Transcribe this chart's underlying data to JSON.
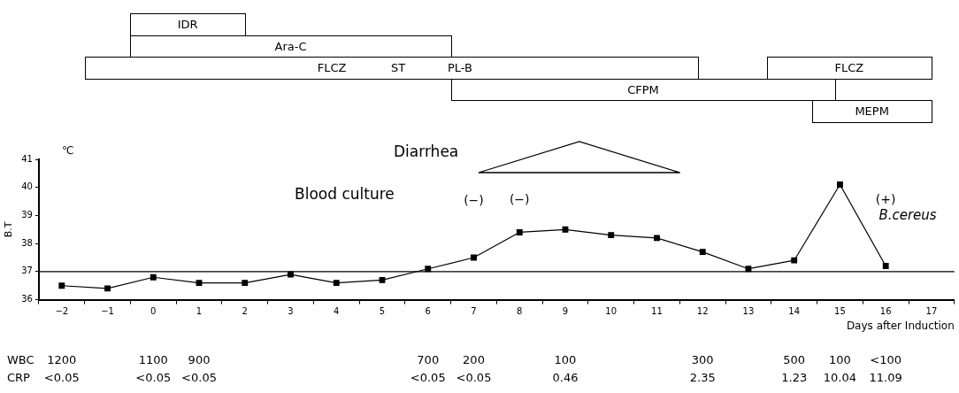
{
  "chart_data": [
    {
      "type": "other",
      "annotations": [
        "IDR",
        "Ara-C",
        "FLCZ",
        "ST",
        "PL-B",
        "FLCZ",
        "CFPM",
        "MEPM"
      ]
    },
    {
      "type": "line",
      "ylabel": "B.T",
      "xlabel": "Days after Induction",
      "x": [
        -2,
        -1,
        0,
        1,
        2,
        3,
        4,
        5,
        6,
        7,
        8,
        9,
        10,
        11,
        12,
        13,
        14,
        15,
        16
      ],
      "values": [
        36.5,
        36.4,
        36.8,
        36.6,
        36.6,
        36.9,
        36.6,
        36.7,
        37.1,
        37.5,
        38.4,
        38.5,
        38.3,
        38.2,
        37.7,
        37.1,
        37.4,
        40.1,
        37.2
      ],
      "color": "#000000",
      "marker": "square",
      "line_style": "solid",
      "grid": false,
      "legend": false,
      "xlim": [
        -2.5,
        17.5
      ],
      "xticks": [
        {
          "value": -2.5,
          "label": null
        },
        {
          "value": -2,
          "label": "−2"
        },
        {
          "value": -1.5,
          "label": null
        },
        {
          "value": -1,
          "label": "−1"
        },
        {
          "value": -0.5,
          "label": null
        },
        0,
        {
          "value": 0.5,
          "label": null
        },
        1,
        {
          "value": 1.5,
          "label": null
        },
        2,
        {
          "value": 2.5,
          "label": null
        },
        3,
        {
          "value": 3.5,
          "label": null
        },
        4,
        {
          "value": 4.5,
          "label": null
        },
        5,
        {
          "value": 5.5,
          "label": null
        },
        6,
        {
          "value": 6.5,
          "label": null
        },
        7,
        {
          "value": 7.5,
          "label": null
        },
        8,
        {
          "value": 8.5,
          "label": null
        },
        9,
        {
          "value": 9.5,
          "label": null
        },
        10,
        {
          "value": 10.5,
          "label": null
        },
        11,
        {
          "value": 11.5,
          "label": null
        },
        12,
        {
          "value": 12.5,
          "label": null
        },
        13,
        {
          "value": 13.5,
          "label": null
        },
        14,
        {
          "value": 14.5,
          "label": null
        },
        15,
        {
          "value": 15.5,
          "label": null
        },
        16,
        {
          "value": 16.5,
          "label": null
        },
        17,
        {
          "value": 17.5,
          "label": null
        }
      ],
      "ylim": [
        36,
        41
      ],
      "yticks": [
        36,
        37,
        38,
        39,
        40,
        41
      ],
      "ref_lines": [
        {
          "axis": "y",
          "value": 37,
          "color": "#000000"
        }
      ],
      "annotations": [
        "℃",
        "Diarrhea",
        "Blood culture",
        "(−)",
        "(−)",
        "(+)",
        "B.cereus",
        "WBC",
        "CRP",
        "1200",
        "1100",
        "900",
        "700",
        "200",
        "100",
        "300",
        "500",
        "100",
        "<100",
        "<0.05",
        "<0.05",
        "<0.05",
        "<0.05",
        "<0.05",
        "0.46",
        "2.35",
        "1.23",
        "10.04",
        "11.09"
      ]
    }
  ]
}
